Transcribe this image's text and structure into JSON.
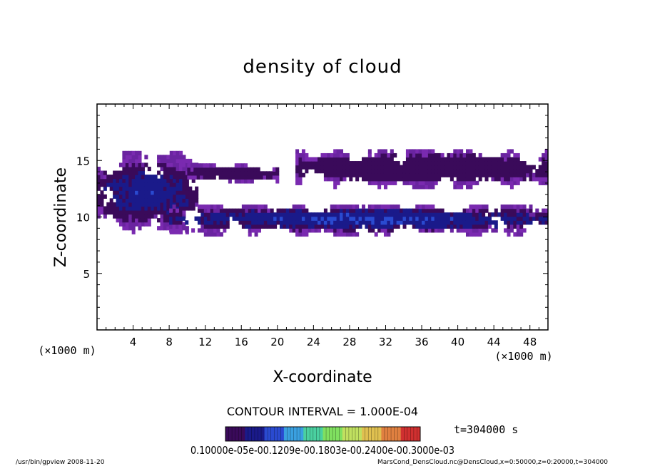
{
  "chart_data": {
    "type": "heatmap",
    "title": "density of cloud",
    "xlabel": "X-coordinate",
    "ylabel": "Z-coordinate",
    "x_unit": "(×1000 m)",
    "y_unit": "(×1000 m)",
    "xlim": [
      0,
      50
    ],
    "ylim": [
      0,
      20
    ],
    "x_ticks": [
      4,
      8,
      12,
      16,
      20,
      24,
      28,
      32,
      36,
      40,
      44,
      48
    ],
    "y_ticks": [
      5,
      10,
      15
    ],
    "x_tick_labels": [
      "4",
      "8",
      "12",
      "16",
      "20",
      "24",
      "28",
      "32",
      "36",
      "40",
      "44",
      "48"
    ],
    "y_tick_labels": [
      "5",
      "10",
      "15"
    ],
    "contour_interval_label": "CONTOUR INTERVAL = 1.000E-04",
    "colorbar": {
      "min": 0.0001,
      "max": 0.0003,
      "label_text": "0.10000e-05e-00.1209e-00.1803e-00.2400e-00.3000e-03",
      "colors": [
        "#3a0a5a",
        "#1a1a8a",
        "#2a4ad0",
        "#3aa0e0",
        "#4ad0a0",
        "#80e060",
        "#c0e060",
        "#e0c050",
        "#e08040",
        "#d03030"
      ]
    },
    "time_label": "t=304000 s",
    "cloud_regions": [
      {
        "x_range": [
          0,
          11
        ],
        "z_range": [
          8.5,
          15.5
        ],
        "peak_density": 0.00018
      },
      {
        "x_range": [
          8,
          50
        ],
        "z_range": [
          8.3,
          11.0
        ],
        "peak_density": 0.0002
      },
      {
        "x_range": [
          22,
          50
        ],
        "z_range": [
          12.5,
          15.8
        ],
        "peak_density": 0.00012
      },
      {
        "x_range": [
          10,
          20
        ],
        "z_range": [
          13.0,
          14.5
        ],
        "peak_density": 0.0001
      }
    ]
  },
  "footer": {
    "left": "/usr/bin/gpview  2008-11-20",
    "right": "MarsCond_DensCloud.nc@DensCloud,x=0:50000,z=0:20000,t=304000"
  }
}
